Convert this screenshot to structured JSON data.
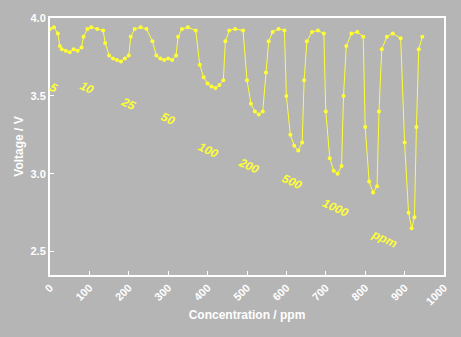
{
  "chart_data": {
    "type": "line",
    "xlabel": "Concentration / ppm",
    "ylabel": "Voltage / V",
    "x": [
      0,
      10,
      20,
      25,
      30,
      40,
      50,
      60,
      70,
      80,
      85,
      95,
      105,
      120,
      135,
      140,
      150,
      160,
      170,
      180,
      190,
      200,
      205,
      215,
      230,
      245,
      260,
      270,
      280,
      290,
      300,
      310,
      320,
      325,
      335,
      350,
      370,
      380,
      390,
      400,
      410,
      420,
      430,
      440,
      445,
      455,
      470,
      490,
      500,
      510,
      520,
      530,
      540,
      548,
      555,
      565,
      580,
      595,
      600,
      610,
      620,
      630,
      640,
      645,
      652,
      665,
      680,
      695,
      700,
      710,
      720,
      730,
      740,
      745,
      752,
      765,
      780,
      795,
      800,
      810,
      820,
      830,
      835,
      842,
      855,
      870,
      890,
      900,
      910,
      918,
      925,
      930,
      936,
      945
    ],
    "values": [
      3.93,
      3.94,
      3.9,
      3.82,
      3.8,
      3.79,
      3.78,
      3.8,
      3.79,
      3.81,
      3.88,
      3.93,
      3.94,
      3.93,
      3.92,
      3.84,
      3.76,
      3.74,
      3.73,
      3.72,
      3.74,
      3.76,
      3.88,
      3.93,
      3.94,
      3.93,
      3.85,
      3.76,
      3.74,
      3.73,
      3.74,
      3.73,
      3.76,
      3.88,
      3.93,
      3.94,
      3.92,
      3.7,
      3.62,
      3.58,
      3.56,
      3.55,
      3.57,
      3.6,
      3.85,
      3.92,
      3.93,
      3.92,
      3.6,
      3.45,
      3.4,
      3.38,
      3.4,
      3.65,
      3.85,
      3.91,
      3.93,
      3.92,
      3.5,
      3.25,
      3.18,
      3.15,
      3.2,
      3.6,
      3.85,
      3.91,
      3.92,
      3.9,
      3.4,
      3.1,
      3.02,
      3.0,
      3.05,
      3.5,
      3.82,
      3.9,
      3.91,
      3.88,
      3.3,
      2.95,
      2.88,
      2.92,
      3.4,
      3.8,
      3.88,
      3.9,
      3.87,
      3.2,
      2.75,
      2.65,
      2.72,
      3.3,
      3.8,
      3.88
    ],
    "color": "#ffff33",
    "marker": "circle",
    "line_style": "solid",
    "grid": false,
    "xlim": [
      0,
      1000
    ],
    "xticks": [
      0,
      100,
      200,
      300,
      400,
      500,
      600,
      700,
      800,
      900,
      1000
    ],
    "ylim": [
      2.35,
      4.0
    ],
    "yticks": [
      2.5,
      {
        "value": 3,
        "label": "3.0"
      },
      3.5,
      {
        "value": 4,
        "label": "4.0"
      }
    ],
    "annotations": [
      {
        "text": "5",
        "x": 10,
        "y": 3.55
      },
      {
        "text": "10",
        "x": 95,
        "y": 3.55
      },
      {
        "text": "25",
        "x": 200,
        "y": 3.45
      },
      {
        "text": "50",
        "x": 300,
        "y": 3.35
      },
      {
        "text": "100",
        "x": 400,
        "y": 3.15
      },
      {
        "text": "200",
        "x": 505,
        "y": 3.05
      },
      {
        "text": "500",
        "x": 615,
        "y": 2.95
      },
      {
        "text": "1000",
        "x": 725,
        "y": 2.78
      },
      {
        "text": "ppm",
        "x": 850,
        "y": 2.58
      }
    ]
  }
}
